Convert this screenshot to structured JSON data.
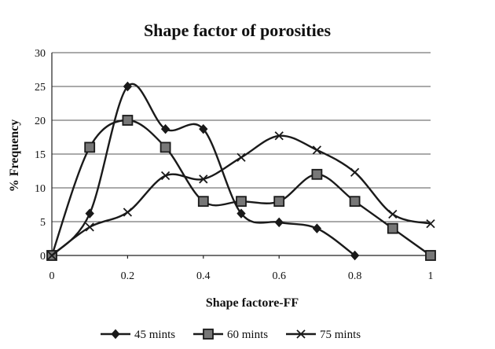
{
  "chart_data": {
    "type": "line",
    "title": "Shape factor of porosities",
    "xlabel": "Shape factore-FF",
    "ylabel": "% Frequency",
    "xlim": [
      0,
      1
    ],
    "ylim": [
      0,
      30
    ],
    "x_ticks": [
      "0",
      "0.2",
      "0.4",
      "0.6",
      "0.8",
      "1"
    ],
    "y_ticks": [
      "0",
      "5",
      "10",
      "15",
      "20",
      "25",
      "30"
    ],
    "grid": "horizontal",
    "smooth": true,
    "legend_position": "bottom",
    "series": [
      {
        "name": "45 mints",
        "marker": "diamond",
        "x": [
          0,
          0.1,
          0.2,
          0.3,
          0.4,
          0.5,
          0.6,
          0.7,
          0.8
        ],
        "values": [
          0,
          6.2,
          25,
          18.7,
          18.7,
          6.2,
          4.9,
          4,
          0
        ]
      },
      {
        "name": "60 mints",
        "marker": "square",
        "x": [
          0,
          0.1,
          0.2,
          0.3,
          0.4,
          0.5,
          0.6,
          0.7,
          0.8,
          0.9,
          1.0
        ],
        "values": [
          0,
          16,
          20,
          16,
          8,
          8,
          8,
          12,
          8,
          4,
          0
        ]
      },
      {
        "name": "75 mints",
        "marker": "x",
        "x": [
          0,
          0.1,
          0.2,
          0.3,
          0.4,
          0.5,
          0.6,
          0.7,
          0.8,
          0.9,
          1.0
        ],
        "values": [
          0,
          4.2,
          6.4,
          11.8,
          11.3,
          14.5,
          17.7,
          15.6,
          12.3,
          6.1,
          4.7
        ]
      }
    ]
  }
}
